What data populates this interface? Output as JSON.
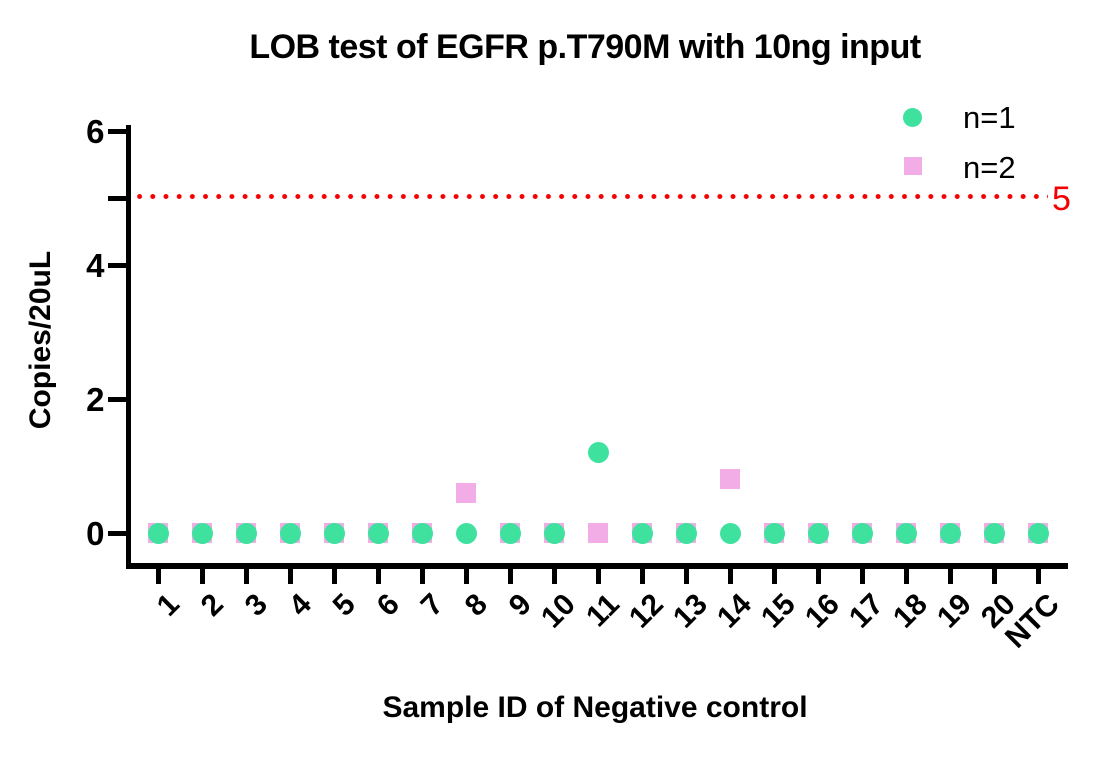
{
  "chart_data": {
    "type": "scatter",
    "title": "LOB test of EGFR p.T790M with 10ng input",
    "xlabel": "Sample ID of Negative control",
    "ylabel": "Copies/20uL",
    "categories": [
      "1",
      "2",
      "3",
      "4",
      "5",
      "6",
      "7",
      "8",
      "9",
      "10",
      "11",
      "12",
      "13",
      "14",
      "15",
      "16",
      "17",
      "18",
      "19",
      "20",
      "NTC"
    ],
    "series": [
      {
        "name": "n=1",
        "marker": "circle",
        "color": "#3EE29E",
        "values": [
          0,
          0,
          0,
          0,
          0,
          0,
          0,
          0,
          0,
          0,
          1.2,
          0,
          0,
          0,
          0,
          0,
          0,
          0,
          0,
          0,
          0
        ]
      },
      {
        "name": "n=2",
        "marker": "square",
        "color": "#F2ADE6",
        "values": [
          0,
          0,
          0,
          0,
          0,
          0,
          0,
          0.6,
          0,
          0,
          0,
          0,
          0,
          0.8,
          0,
          0,
          0,
          0,
          0,
          0,
          0
        ]
      }
    ],
    "threshold_line": {
      "value": 5,
      "label": "5",
      "color": "#F40000",
      "style": "dotted"
    },
    "ylim": [
      0,
      6
    ],
    "yticks": [
      0,
      2,
      4,
      6
    ],
    "unlabeled_yticks": [
      5
    ],
    "legend_position": "top-right",
    "grid": false,
    "axis_color": "#000000",
    "background_color": "#FFFFFF"
  }
}
